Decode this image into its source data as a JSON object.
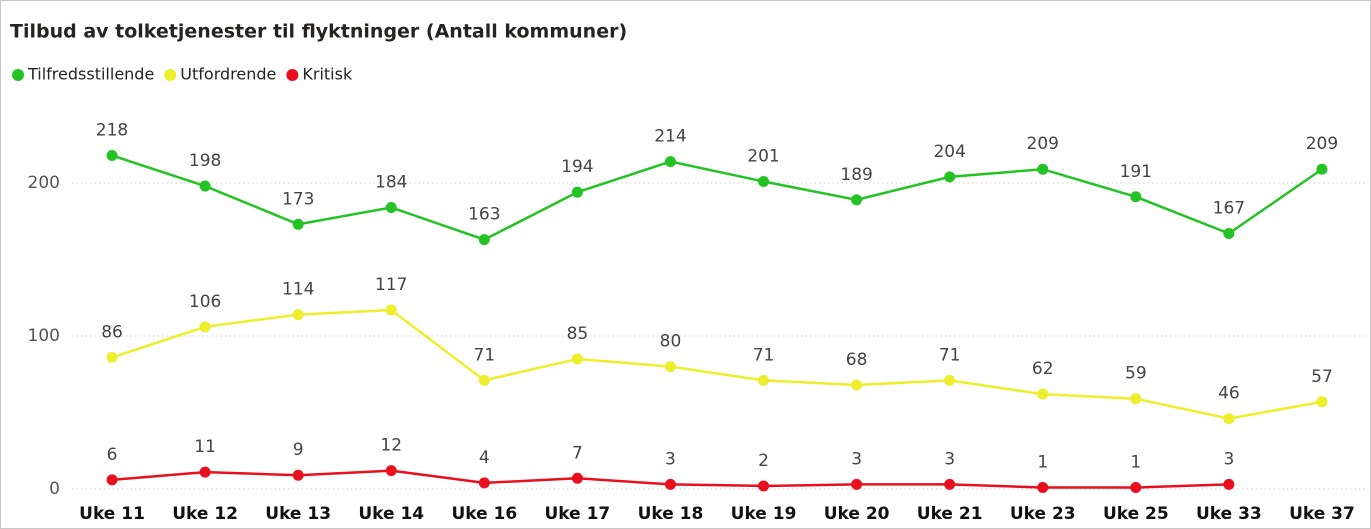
{
  "chart_data": {
    "type": "line",
    "title": "Tilbud av tolketjenester til flyktninger (Antall kommuner)",
    "categories": [
      "Uke 11",
      "Uke 12",
      "Uke 13",
      "Uke 14",
      "Uke 16",
      "Uke 17",
      "Uke 18",
      "Uke 19",
      "Uke 20",
      "Uke 21",
      "Uke 23",
      "Uke 25",
      "Uke 33",
      "Uke 37"
    ],
    "series": [
      {
        "name": "Tilfredsstillende",
        "color": "#22c322",
        "values": [
          218,
          198,
          173,
          184,
          163,
          194,
          214,
          201,
          189,
          204,
          209,
          191,
          167,
          209
        ]
      },
      {
        "name": "Utfordrende",
        "color": "#eeee2c",
        "values": [
          86,
          106,
          114,
          117,
          71,
          85,
          80,
          71,
          68,
          71,
          62,
          59,
          46,
          57
        ]
      },
      {
        "name": "Kritisk",
        "color": "#e8101e",
        "values": [
          6,
          11,
          9,
          12,
          4,
          7,
          3,
          2,
          3,
          3,
          1,
          1,
          3,
          null
        ]
      }
    ],
    "ylim": [
      0,
      250
    ],
    "yticks": [
      0,
      100,
      200
    ],
    "grid": true,
    "legend": "top-left"
  }
}
